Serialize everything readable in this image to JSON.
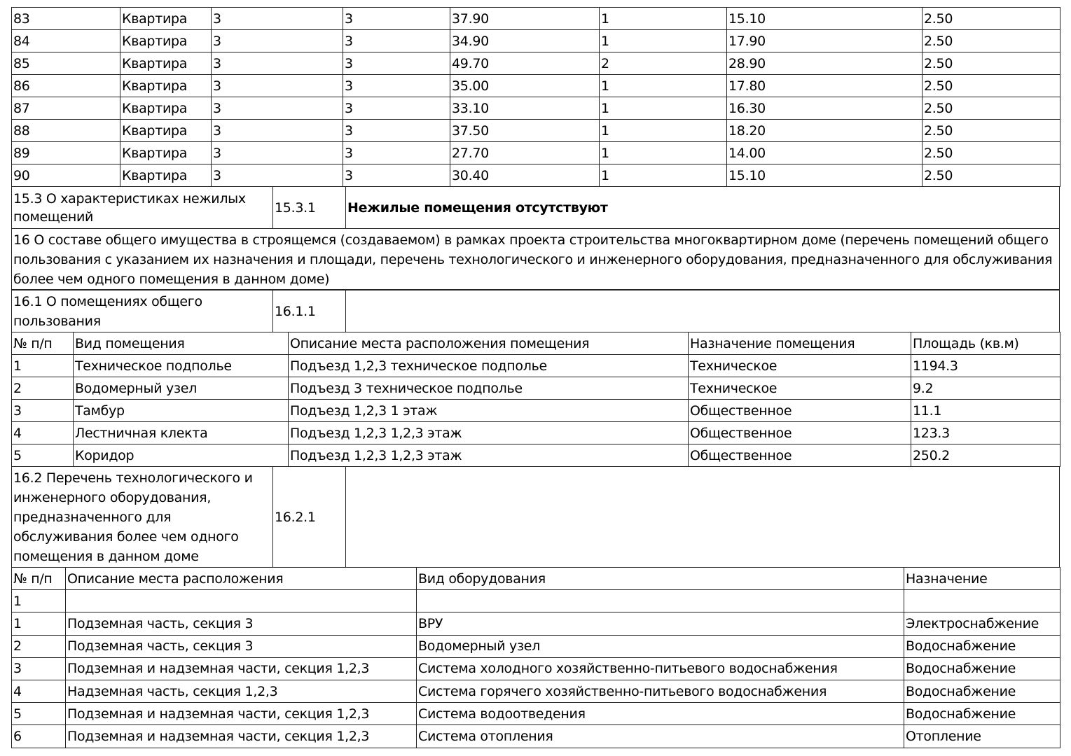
{
  "apartments": [
    [
      "83",
      "Квартира",
      "3",
      "3",
      "37.90",
      "1",
      "15.10",
      "2.50"
    ],
    [
      "84",
      "Квартира",
      "3",
      "3",
      "34.90",
      "1",
      "17.90",
      "2.50"
    ],
    [
      "85",
      "Квартира",
      "3",
      "3",
      "49.70",
      "2",
      "28.90",
      "2.50"
    ],
    [
      "86",
      "Квартира",
      "3",
      "3",
      "35.00",
      "1",
      "17.80",
      "2.50"
    ],
    [
      "87",
      "Квартира",
      "3",
      "3",
      "33.10",
      "1",
      "16.30",
      "2.50"
    ],
    [
      "88",
      "Квартира",
      "3",
      "3",
      "37.50",
      "1",
      "18.20",
      "2.50"
    ],
    [
      "89",
      "Квартира",
      "3",
      "3",
      "27.70",
      "1",
      "14.00",
      "2.50"
    ],
    [
      "90",
      "Квартира",
      "3",
      "3",
      "30.40",
      "1",
      "15.10",
      "2.50"
    ]
  ],
  "s15_3": {
    "label": "15.3 О характеристиках нежилых помещений",
    "code": "15.3.1",
    "value": "Нежилые помещения отсутствуют"
  },
  "s16": {
    "text": "16 О составе общего имущества в строящемся (создаваемом) в рамках проекта строительства многоквартирном доме (перечень помещений общего пользования с указанием их назначения и площади, перечень технологического и инженерного оборудования, предназначенного для обслуживания более чем одного помещения в данном доме)"
  },
  "s16_1": {
    "label": "16.1 О помещениях общего пользования",
    "code": "16.1.1",
    "value": ""
  },
  "rooms": {
    "headers": [
      "№ п/п",
      "Вид помещения",
      "Описание места расположения помещения",
      "Назначение помещения",
      "Площадь (кв.м)"
    ],
    "rows": [
      [
        "1",
        "Техническое подполье",
        "Подъезд 1,2,3 техническое подполье",
        "Техническое",
        "1194.3"
      ],
      [
        "2",
        "Водомерный узел",
        "Подъезд 3 техническое подполье",
        "Техническое",
        "9.2"
      ],
      [
        "3",
        "Тамбур",
        "Подъезд 1,2,3 1 этаж",
        "Общественное",
        "11.1"
      ],
      [
        "4",
        "Лестничная клекта",
        "Подъезд 1,2,3 1,2,3 этаж",
        "Общественное",
        "123.3"
      ],
      [
        "5",
        "Коридор",
        "Подъезд 1,2,3 1,2,3 этаж",
        "Общественное",
        "250.2"
      ]
    ]
  },
  "s16_2": {
    "label": "16.2 Перечень технологического и инженерного оборудования, предназначенного для обслуживания более чем одного помещения в данном доме",
    "code": "16.2.1",
    "value": ""
  },
  "equipment": {
    "headers": [
      "№ п/п",
      "Описание места расположения",
      "Вид оборудования",
      "Назначение"
    ],
    "rows": [
      [
        "1",
        "",
        "",
        ""
      ],
      [
        "1",
        "Подземная часть, секция 3",
        "ВРУ",
        "Электроснабжение"
      ],
      [
        "2",
        "Подземная часть, секция 3",
        "Водомерный узел",
        "Водоснабжение"
      ],
      [
        "3",
        "Подземная и надземная части, секция 1,2,3",
        "Система холодного хозяйственно-питьевого водоснабжения",
        "Водоснабжение"
      ],
      [
        "4",
        "Надземная часть, секция 1,2,3",
        "Система горячего хозяйственно-питьевого водоснабжения",
        "Водоснабжение"
      ],
      [
        "5",
        "Подземная и надземная части, секция 1,2,3",
        "Система водоотведения",
        "Водоснабжение"
      ],
      [
        "6",
        "Подземная и надземная части, секция 1,2,3",
        "Система отопления",
        "Отопление"
      ]
    ]
  }
}
